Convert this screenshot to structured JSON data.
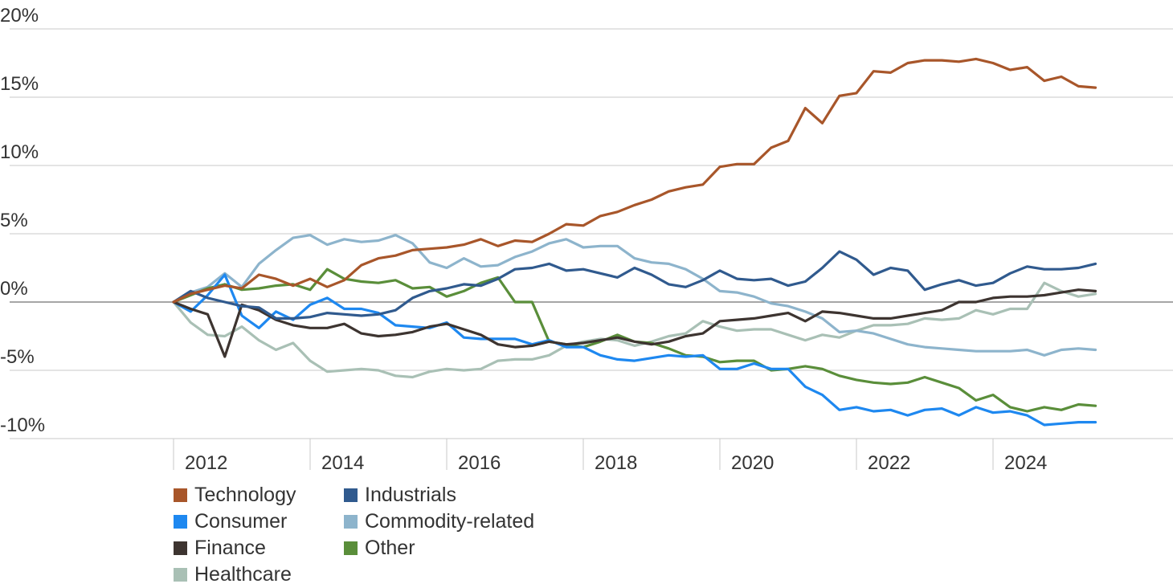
{
  "chart_data": {
    "type": "line",
    "title": "",
    "xlabel": "",
    "ylabel": "",
    "xlim": [
      2010.8,
      2026.7
    ],
    "ylim": [
      -10,
      20
    ],
    "y_ticks": [
      {
        "value": 20,
        "label": "20%"
      },
      {
        "value": 15,
        "label": "15%"
      },
      {
        "value": 10,
        "label": "10%"
      },
      {
        "value": 5,
        "label": "5%"
      },
      {
        "value": 0,
        "label": "0%"
      },
      {
        "value": -5,
        "label": "-5%"
      },
      {
        "value": -10,
        "label": "-10%"
      }
    ],
    "x_ticks": [
      {
        "value": 2012,
        "label": "2012"
      },
      {
        "value": 2014,
        "label": "2014"
      },
      {
        "value": 2016,
        "label": "2016"
      },
      {
        "value": 2018,
        "label": "2018"
      },
      {
        "value": 2020,
        "label": "2020"
      },
      {
        "value": 2022,
        "label": "2022"
      },
      {
        "value": 2024,
        "label": "2024"
      }
    ],
    "grid": true,
    "legend_position": "bottom-left",
    "x": [
      2011.0,
      2011.25,
      2011.5,
      2011.75,
      2012.0,
      2012.25,
      2012.5,
      2012.75,
      2013.0,
      2013.25,
      2013.5,
      2013.75,
      2014.0,
      2014.25,
      2014.5,
      2014.75,
      2015.0,
      2015.25,
      2015.5,
      2015.75,
      2016.0,
      2016.25,
      2016.5,
      2016.75,
      2017.0,
      2017.25,
      2017.5,
      2017.75,
      2018.0,
      2018.25,
      2018.5,
      2018.75,
      2019.0,
      2019.25,
      2019.5,
      2019.75,
      2020.0,
      2020.25,
      2020.5,
      2020.75,
      2021.0,
      2021.25,
      2021.5,
      2021.75,
      2022.0,
      2022.25,
      2022.5,
      2022.75,
      2023.0,
      2023.25,
      2023.5,
      2023.75,
      2024.0,
      2024.25,
      2024.5,
      2024.75,
      2025.0,
      2025.25,
      2025.5,
      2025.75,
      2026.0
    ],
    "series": [
      {
        "name": "Technology",
        "color": "#A8562A",
        "values": [
          0.0,
          0.6,
          0.9,
          1.2,
          1.0,
          2.0,
          1.7,
          1.2,
          1.7,
          1.1,
          1.6,
          2.7,
          3.2,
          3.4,
          3.8,
          3.9,
          4.0,
          4.2,
          4.6,
          4.1,
          4.5,
          4.4,
          5.0,
          5.7,
          5.6,
          6.3,
          6.6,
          7.1,
          7.5,
          8.1,
          8.4,
          8.6,
          9.9,
          10.1,
          10.1,
          11.3,
          11.8,
          14.2,
          13.1,
          15.1,
          15.3,
          16.9,
          16.8,
          17.5,
          17.7,
          17.7,
          17.6,
          17.8,
          17.5,
          17.0,
          17.2,
          16.2,
          16.5,
          15.8,
          15.7,
          null,
          null,
          null,
          null,
          null,
          null
        ]
      },
      {
        "name": "Industrials",
        "color": "#305A8E",
        "values": [
          0.0,
          0.8,
          0.3,
          0.0,
          -0.3,
          -0.4,
          -1.2,
          -1.2,
          -1.1,
          -0.8,
          -0.9,
          -1.0,
          -0.9,
          -0.6,
          0.3,
          0.8,
          1.0,
          1.3,
          1.2,
          1.7,
          2.4,
          2.5,
          2.8,
          2.3,
          2.4,
          2.1,
          1.8,
          2.5,
          2.0,
          1.3,
          1.1,
          1.6,
          2.3,
          1.7,
          1.6,
          1.7,
          1.2,
          1.5,
          2.5,
          3.7,
          3.1,
          2.0,
          2.5,
          2.3,
          0.9,
          1.3,
          1.6,
          1.2,
          1.4,
          2.1,
          2.6,
          2.4,
          2.4,
          2.5,
          2.8,
          null,
          null,
          null,
          null,
          null,
          null
        ]
      },
      {
        "name": "Consumer",
        "color": "#1E88F0",
        "values": [
          0.0,
          -0.7,
          0.5,
          2.0,
          -1.0,
          -1.9,
          -0.7,
          -1.3,
          -0.2,
          0.3,
          -0.5,
          -0.5,
          -0.8,
          -1.7,
          -1.8,
          -1.9,
          -1.5,
          -2.6,
          -2.7,
          -2.7,
          -2.7,
          -3.1,
          -2.8,
          -3.3,
          -3.3,
          -3.9,
          -4.2,
          -4.3,
          -4.1,
          -3.9,
          -4.0,
          -3.9,
          -4.9,
          -4.9,
          -4.5,
          -4.9,
          -4.9,
          -6.2,
          -6.8,
          -7.9,
          -7.7,
          -8.0,
          -7.9,
          -8.3,
          -7.9,
          -7.8,
          -8.3,
          -7.7,
          -8.1,
          -8.0,
          -8.3,
          -9.0,
          -8.9,
          -8.8,
          -8.8,
          null,
          null,
          null,
          null,
          null,
          null
        ]
      },
      {
        "name": "Commodity-related",
        "color": "#8DB4CC",
        "values": [
          0.0,
          0.7,
          1.1,
          2.1,
          1.1,
          2.8,
          3.8,
          4.7,
          4.9,
          4.2,
          4.6,
          4.4,
          4.5,
          4.9,
          4.3,
          2.9,
          2.5,
          3.2,
          2.6,
          2.7,
          3.3,
          3.7,
          4.3,
          4.6,
          4.0,
          4.1,
          4.1,
          3.2,
          2.9,
          2.8,
          2.4,
          1.7,
          0.8,
          0.7,
          0.4,
          -0.1,
          -0.3,
          -0.7,
          -1.2,
          -2.2,
          -2.1,
          -2.3,
          -2.7,
          -3.1,
          -3.3,
          -3.4,
          -3.5,
          -3.6,
          -3.6,
          -3.6,
          -3.5,
          -3.9,
          -3.5,
          -3.4,
          -3.5,
          null,
          null,
          null,
          null,
          null,
          null
        ]
      },
      {
        "name": "Finance",
        "color": "#3D3430",
        "values": [
          0.0,
          -0.5,
          -0.9,
          -4.0,
          -0.2,
          -0.6,
          -1.3,
          -1.7,
          -1.9,
          -1.9,
          -1.6,
          -2.3,
          -2.5,
          -2.4,
          -2.2,
          -1.8,
          -1.6,
          -2.0,
          -2.4,
          -3.1,
          -3.3,
          -3.2,
          -2.9,
          -3.1,
          -3.0,
          -2.8,
          -2.6,
          -2.9,
          -3.1,
          -2.9,
          -2.5,
          -2.3,
          -1.4,
          -1.3,
          -1.2,
          -1.0,
          -0.8,
          -1.4,
          -0.7,
          -0.8,
          -1.0,
          -1.2,
          -1.2,
          -1.0,
          -0.8,
          -0.6,
          0.0,
          0.0,
          0.3,
          0.4,
          0.4,
          0.5,
          0.7,
          0.9,
          0.8,
          null,
          null,
          null,
          null,
          null,
          null
        ]
      },
      {
        "name": "Other",
        "color": "#5A8E3A",
        "values": [
          0.0,
          0.5,
          1.0,
          1.3,
          0.9,
          1.0,
          1.2,
          1.3,
          0.9,
          2.4,
          1.7,
          1.5,
          1.4,
          1.6,
          1.0,
          1.1,
          0.4,
          0.8,
          1.4,
          1.8,
          0.0,
          0.0,
          -2.9,
          -3.1,
          -3.3,
          -2.9,
          -2.4,
          -2.9,
          -3.0,
          -3.4,
          -3.9,
          -4.0,
          -4.4,
          -4.3,
          -4.3,
          -5.0,
          -4.9,
          -4.7,
          -4.9,
          -5.4,
          -5.7,
          -5.9,
          -6.0,
          -5.9,
          -5.5,
          -5.9,
          -6.3,
          -7.2,
          -6.8,
          -7.7,
          -8.0,
          -7.7,
          -7.9,
          -7.5,
          -7.6,
          null,
          null,
          null,
          null,
          null,
          null
        ]
      },
      {
        "name": "Healthcare",
        "color": "#A9C0B5",
        "values": [
          0.0,
          -1.5,
          -2.4,
          -2.5,
          -1.8,
          -2.8,
          -3.5,
          -3.0,
          -4.3,
          -5.1,
          -5.0,
          -4.9,
          -5.0,
          -5.4,
          -5.5,
          -5.1,
          -4.9,
          -5.0,
          -4.9,
          -4.3,
          -4.2,
          -4.2,
          -3.9,
          -3.2,
          -2.9,
          -2.7,
          -2.8,
          -3.2,
          -2.9,
          -2.5,
          -2.3,
          -1.4,
          -1.8,
          -2.1,
          -2.0,
          -2.0,
          -2.4,
          -2.8,
          -2.4,
          -2.6,
          -2.1,
          -1.7,
          -1.7,
          -1.6,
          -1.2,
          -1.3,
          -1.2,
          -0.6,
          -0.9,
          -0.5,
          -0.5,
          1.4,
          0.8,
          0.4,
          0.6,
          null,
          null,
          null,
          null,
          null,
          null
        ]
      }
    ],
    "legend_order": [
      "Technology",
      "Industrials",
      "Consumer",
      "Commodity-related",
      "Finance",
      "Other",
      "Healthcare"
    ]
  }
}
